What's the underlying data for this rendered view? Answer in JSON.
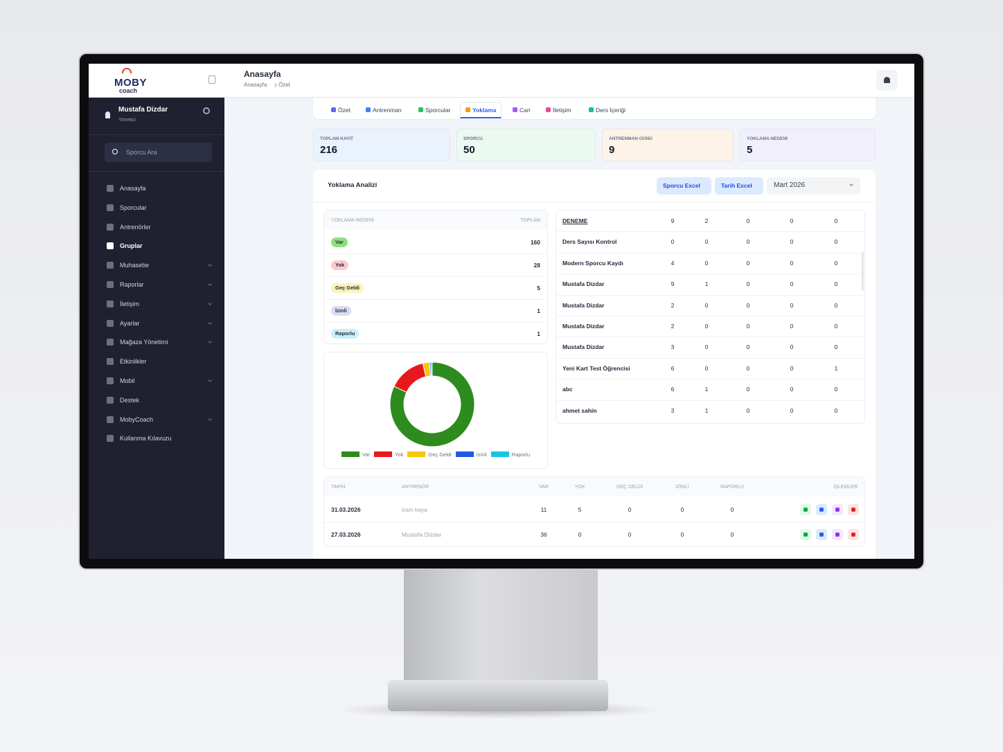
{
  "header": {
    "title": "Anasayfa",
    "breadcrumb": [
      "Anasayfa",
      "Özet"
    ]
  },
  "sidebar": {
    "logo": {
      "brand": "MOBY",
      "tagline": "coach"
    },
    "user": {
      "name": "Mustafa Dizdar",
      "role": "Yönetici"
    },
    "search_placeholder": "Sporcu Ara",
    "menu": [
      {
        "label": "Anasayfa"
      },
      {
        "label": "Sporcular"
      },
      {
        "label": "Antrenörler"
      },
      {
        "label": "Gruplar",
        "active": true
      },
      {
        "label": "Muhasebe",
        "expandable": true
      },
      {
        "label": "Raporlar",
        "expandable": true
      },
      {
        "label": "İletişim",
        "expandable": true
      },
      {
        "label": "Ayarlar",
        "expandable": true
      },
      {
        "label": "Mağaza Yönetimi",
        "expandable": true
      },
      {
        "label": "Etkinlikler"
      },
      {
        "label": "Mobil",
        "expandable": true
      },
      {
        "label": "Destek"
      },
      {
        "label": "MobyCoach",
        "expandable": true
      },
      {
        "label": "Kullanma Kılavuzu"
      }
    ]
  },
  "tabs": [
    {
      "label": "Özet",
      "color": "#6366f1"
    },
    {
      "label": "Antrenman",
      "color": "#3b82f6"
    },
    {
      "label": "Sporcular",
      "color": "#22c55e"
    },
    {
      "label": "Yoklama",
      "color": "#f59e0b",
      "active": true
    },
    {
      "label": "Cari",
      "color": "#a855f7"
    },
    {
      "label": "İletişim",
      "color": "#ec4899"
    },
    {
      "label": "Ders İçeriği",
      "color": "#14b8a6"
    }
  ],
  "stats": [
    {
      "label": "TOPLAM KAYIT",
      "value": 216,
      "tint": "#eaf2fd"
    },
    {
      "label": "SPORCU",
      "value": 50,
      "tint": "#eafaf0"
    },
    {
      "label": "ANTRENMAN GÜNÜ",
      "value": 9,
      "tint": "#fdf3e8"
    },
    {
      "label": "YOKLAMA NEDENİ",
      "value": 5,
      "tint": "#f1effc"
    }
  ],
  "analysis": {
    "title": "Yoklama Analizi",
    "buttons": [
      "Sporcu Excel",
      "Tarih Excel"
    ],
    "month": "Mart 2026",
    "reasons": {
      "columns": [
        "YOKLAMA NEDENİ",
        "TOPLAM"
      ],
      "rows": [
        {
          "name": "Var",
          "total": 160,
          "color": "#2e8b1e",
          "badge": "#8fe07c"
        },
        {
          "name": "Yok",
          "total": 28,
          "color": "#e8191c",
          "badge": "#fccaca"
        },
        {
          "name": "Geç Geldi",
          "total": 5,
          "color": "#f5c800",
          "badge": "#fdf1b9"
        },
        {
          "name": "İzinli",
          "total": 1,
          "color": "#1f5be0",
          "badge": "#d8ddf2"
        },
        {
          "name": "Raporlu",
          "total": 1,
          "color": "#19c3e6",
          "badge": "#c8eff9"
        }
      ]
    },
    "athletes": [
      [
        "DENEME",
        9,
        2,
        0,
        0,
        0
      ],
      [
        "Ders Sayısı Kontrol",
        0,
        0,
        0,
        0,
        0
      ],
      [
        "Modern Sporcu Kaydı",
        4,
        0,
        0,
        0,
        0
      ],
      [
        "Mustafa Dizdar",
        9,
        1,
        0,
        0,
        0
      ],
      [
        "Mustafa Dizdar",
        2,
        0,
        0,
        0,
        0
      ],
      [
        "Mustafa Dizdar",
        2,
        0,
        0,
        0,
        0
      ],
      [
        "Mustafa Dizdar",
        3,
        0,
        0,
        0,
        0
      ],
      [
        "Yeni Kart Test Öğrencisi",
        6,
        0,
        0,
        0,
        1
      ],
      [
        "abc",
        6,
        1,
        0,
        0,
        0
      ],
      [
        "ahmet sahin",
        3,
        1,
        0,
        0,
        0
      ]
    ]
  },
  "records": {
    "columns": [
      "TARİH",
      "ANTRENÖR",
      "VAR",
      "YOK",
      "GEÇ GELDİ",
      "İZİNLİ",
      "RAPORLU",
      "İŞLEMLER"
    ],
    "rows": [
      [
        "31.03.2026",
        "iram kaya",
        11,
        5,
        0,
        0,
        0
      ],
      [
        "27.03.2026",
        "Mustafa Dizdar",
        36,
        0,
        0,
        0,
        0
      ]
    ]
  }
}
